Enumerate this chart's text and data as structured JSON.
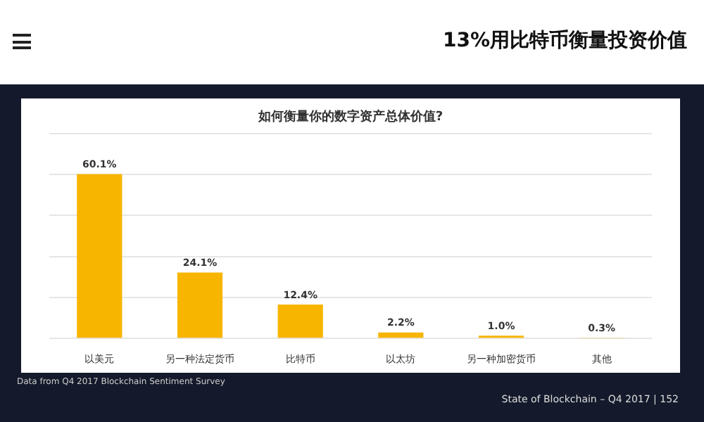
{
  "chart_data": {
    "type": "bar",
    "title": "如何衡量你的数字资产总体价值?",
    "categories": [
      "以美元",
      "另一种法定货币",
      "比特币",
      "以太坊",
      "另一种加密货币",
      "其他"
    ],
    "values": [
      60.1,
      24.1,
      12.4,
      2.2,
      1.0,
      0.3
    ],
    "value_labels": [
      "60.1%",
      "24.1%",
      "12.4%",
      "2.2%",
      "1.0%",
      "0.3%"
    ],
    "color": "#f7b500",
    "ylim": [
      0,
      75
    ],
    "yticks": [
      {
        "value": 0,
        "label": null
      },
      {
        "value": 15,
        "label": null
      },
      {
        "value": 30,
        "label": null
      },
      {
        "value": 45,
        "label": null
      },
      {
        "value": 60,
        "label": null
      },
      {
        "value": 75,
        "label": null
      }
    ],
    "grid": "y",
    "legend": false,
    "tick_labels": "x",
    "annotations": [
      "13%用比特币衡量投资价值",
      "Data from Q4 2017 Blockchain Sentiment Survey",
      "State of Blockchain – Q4 2017   |   152"
    ]
  }
}
